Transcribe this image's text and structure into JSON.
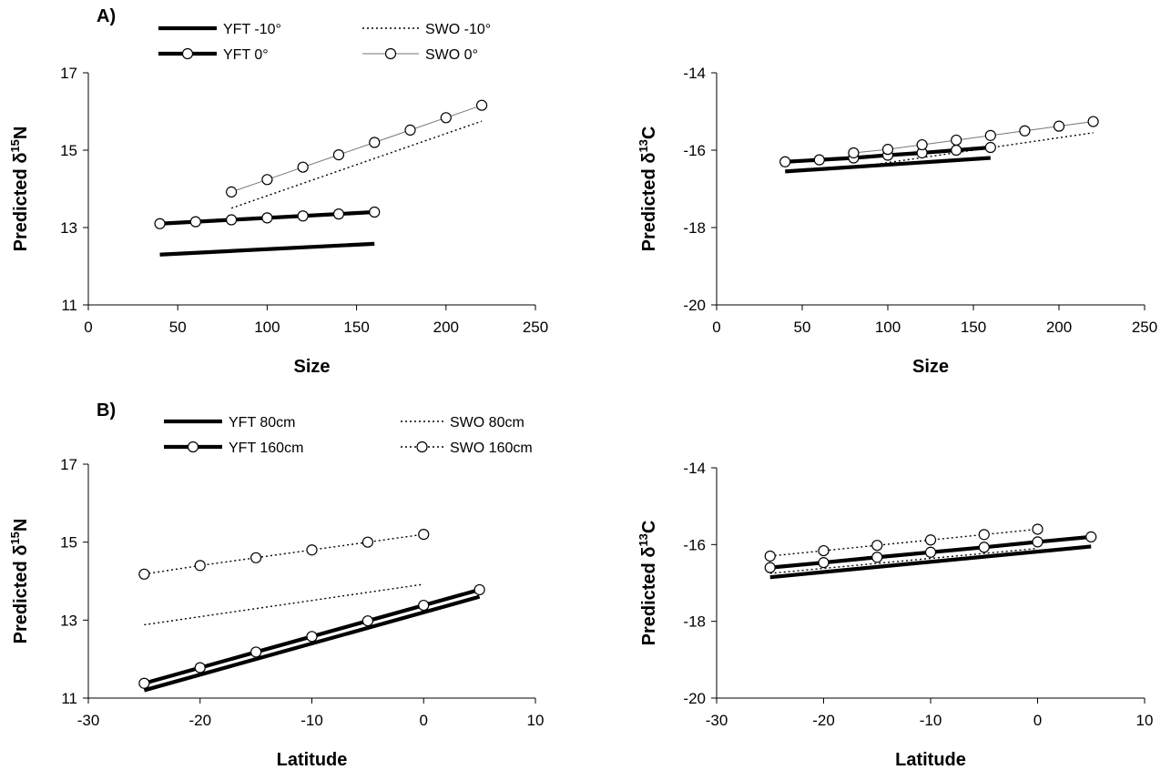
{
  "chart_data": [
    {
      "id": "A-left",
      "panel_label": "A)",
      "type": "line",
      "xlabel": "Size",
      "ylabel": "Predicted δ15N",
      "ylabel_main": "Predicted δ",
      "ylabel_sup": "15",
      "ylabel_el": "N",
      "xlim": [
        0,
        250
      ],
      "ylim": [
        11,
        17
      ],
      "xticks": [
        0,
        50,
        100,
        150,
        200,
        250
      ],
      "yticks": [
        11,
        13,
        15,
        17
      ],
      "series": [
        {
          "name": "YFT -10°",
          "style": "thick",
          "markers": false,
          "x": [
            40,
            160
          ],
          "y": [
            12.3,
            12.58
          ]
        },
        {
          "name": "SWO -10°",
          "style": "dotted",
          "markers": false,
          "x": [
            80,
            220
          ],
          "y": [
            13.5,
            15.75
          ]
        },
        {
          "name": "YFT 0°",
          "style": "thick",
          "markers": true,
          "x": [
            40,
            60,
            80,
            100,
            120,
            140,
            160
          ],
          "y": [
            13.1,
            13.15,
            13.2,
            13.25,
            13.3,
            13.35,
            13.4
          ]
        },
        {
          "name": "SWO 0°",
          "style": "thin",
          "markers": true,
          "x": [
            80,
            100,
            120,
            140,
            160,
            180,
            200,
            220
          ],
          "y": [
            13.92,
            14.24,
            14.56,
            14.88,
            15.2,
            15.52,
            15.84,
            16.16
          ]
        }
      ]
    },
    {
      "id": "A-right",
      "type": "line",
      "xlabel": "Size",
      "ylabel": "Predicted δ13C",
      "ylabel_main": "Predicted δ",
      "ylabel_sup": "13",
      "ylabel_el": "C",
      "xlim": [
        0,
        250
      ],
      "ylim": [
        -20,
        -14
      ],
      "xticks": [
        0,
        50,
        100,
        150,
        200,
        250
      ],
      "yticks": [
        -20,
        -18,
        -16,
        -14
      ],
      "series": [
        {
          "name": "YFT -10°",
          "style": "thick",
          "markers": false,
          "x": [
            40,
            160
          ],
          "y": [
            -16.55,
            -16.2
          ]
        },
        {
          "name": "SWO -10°",
          "style": "dotted",
          "markers": false,
          "x": [
            80,
            220
          ],
          "y": [
            -16.45,
            -15.55
          ]
        },
        {
          "name": "YFT 0°",
          "style": "thick",
          "markers": true,
          "x": [
            40,
            60,
            80,
            100,
            120,
            140,
            160
          ],
          "y": [
            -16.3,
            -16.25,
            -16.2,
            -16.13,
            -16.07,
            -16.0,
            -15.93
          ]
        },
        {
          "name": "SWO 0°",
          "style": "thin",
          "markers": true,
          "x": [
            80,
            100,
            120,
            140,
            160,
            180,
            200,
            220
          ],
          "y": [
            -16.07,
            -15.98,
            -15.86,
            -15.74,
            -15.62,
            -15.5,
            -15.38,
            -15.26
          ]
        }
      ]
    },
    {
      "id": "B-left",
      "panel_label": "B)",
      "type": "line",
      "xlabel": "Latitude",
      "ylabel": "Predicted δ15N",
      "ylabel_main": "Predicted δ",
      "ylabel_sup": "15",
      "ylabel_el": "N",
      "xlim": [
        -30,
        10
      ],
      "ylim": [
        11,
        17
      ],
      "xticks": [
        -30,
        -20,
        -10,
        0,
        10
      ],
      "yticks": [
        11,
        13,
        15,
        17
      ],
      "series": [
        {
          "name": "YFT 80cm",
          "style": "thick",
          "markers": false,
          "x": [
            -25,
            5
          ],
          "y": [
            11.2,
            13.6
          ]
        },
        {
          "name": "SWO 80cm",
          "style": "dotted",
          "markers": false,
          "x": [
            -25,
            0
          ],
          "y": [
            12.88,
            13.92
          ]
        },
        {
          "name": "YFT 160cm",
          "style": "thick",
          "markers": true,
          "x": [
            -25,
            -20,
            -15,
            -10,
            -5,
            0,
            5
          ],
          "y": [
            11.38,
            11.78,
            12.18,
            12.58,
            12.98,
            13.38,
            13.78
          ]
        },
        {
          "name": "SWO 160cm",
          "style": "dotted",
          "markers": true,
          "x": [
            -25,
            -20,
            -15,
            -10,
            -5,
            0
          ],
          "y": [
            14.18,
            14.4,
            14.6,
            14.8,
            15.0,
            15.2
          ]
        }
      ]
    },
    {
      "id": "B-right",
      "type": "line",
      "xlabel": "Latitude",
      "ylabel": "Predicted δ13C",
      "ylabel_main": "Predicted δ",
      "ylabel_sup": "13",
      "ylabel_el": "C",
      "xlim": [
        -30,
        10
      ],
      "ylim": [
        -20,
        -14
      ],
      "xticks": [
        -30,
        -20,
        -10,
        0,
        10
      ],
      "yticks": [
        -20,
        -18,
        -16,
        -14
      ],
      "series": [
        {
          "name": "YFT 80cm",
          "style": "thick",
          "markers": false,
          "x": [
            -25,
            5
          ],
          "y": [
            -16.85,
            -16.05
          ]
        },
        {
          "name": "SWO 80cm",
          "style": "dotted",
          "markers": false,
          "x": [
            -25,
            0
          ],
          "y": [
            -16.75,
            -16.1
          ]
        },
        {
          "name": "YFT 160cm",
          "style": "thick",
          "markers": true,
          "x": [
            -25,
            -20,
            -15,
            -10,
            -5,
            0,
            5
          ],
          "y": [
            -16.6,
            -16.47,
            -16.33,
            -16.2,
            -16.07,
            -15.93,
            -15.8
          ]
        },
        {
          "name": "SWO 160cm",
          "style": "dotted",
          "markers": true,
          "x": [
            -25,
            -20,
            -15,
            -10,
            -5,
            0
          ],
          "y": [
            -16.3,
            -16.16,
            -16.02,
            -15.88,
            -15.74,
            -15.6
          ]
        }
      ]
    }
  ]
}
